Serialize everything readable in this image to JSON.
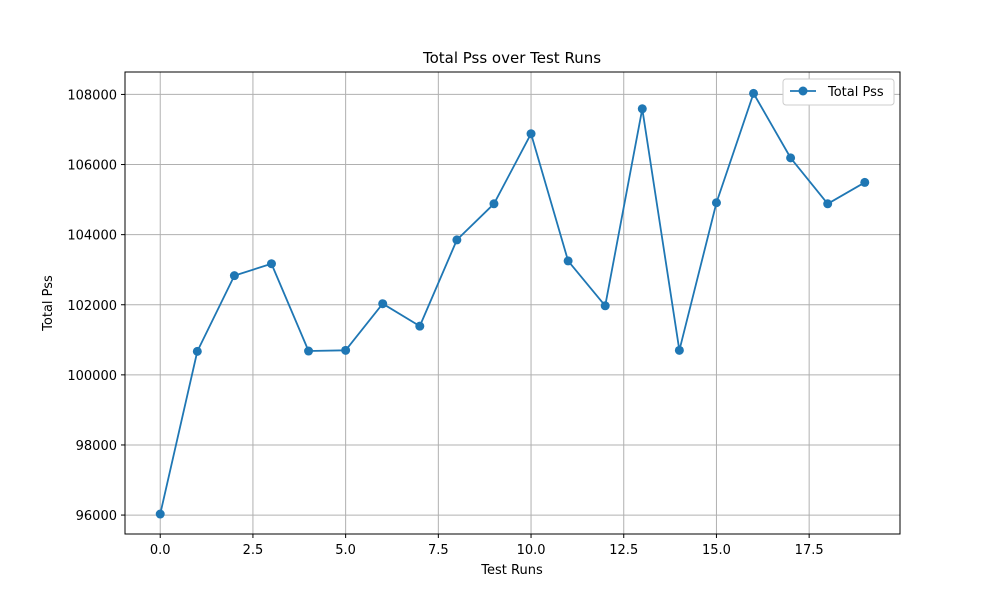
{
  "chart_data": {
    "type": "line",
    "title": "Total Pss over Test Runs",
    "xlabel": "Test Runs",
    "ylabel": "Total Pss",
    "xlim": [
      -0.95,
      19.95
    ],
    "ylim": [
      95500,
      106620
    ],
    "x_ticks": [
      0.0,
      2.5,
      5.0,
      7.5,
      10.0,
      12.5,
      15.0,
      17.5
    ],
    "x_tick_labels": [
      "0.0",
      "2.5",
      "5.0",
      "7.5",
      "10.0",
      "12.5",
      "15.0",
      "17.5"
    ],
    "y_ticks": [
      96000,
      98000,
      100000,
      102000,
      104000,
      106000,
      108000
    ],
    "y_tick_labels": [
      "96000",
      "98000",
      "100000",
      "102000",
      "104000",
      "106000",
      "108000"
    ],
    "grid": true,
    "legend_position": "top-right",
    "series": [
      {
        "name": "Total Pss",
        "color": "#1f77b4",
        "marker": "circle",
        "x": [
          0,
          1,
          2,
          3,
          4,
          5,
          6,
          7,
          8,
          9,
          10,
          11,
          12,
          13,
          14,
          15,
          16,
          17,
          18,
          19
        ],
        "y": [
          96030,
          100670,
          102830,
          103170,
          100680,
          100700,
          102030,
          101390,
          103850,
          104880,
          106880,
          103250,
          101970,
          107590,
          100700,
          104910,
          108030,
          106190,
          104880,
          105490
        ]
      }
    ]
  }
}
